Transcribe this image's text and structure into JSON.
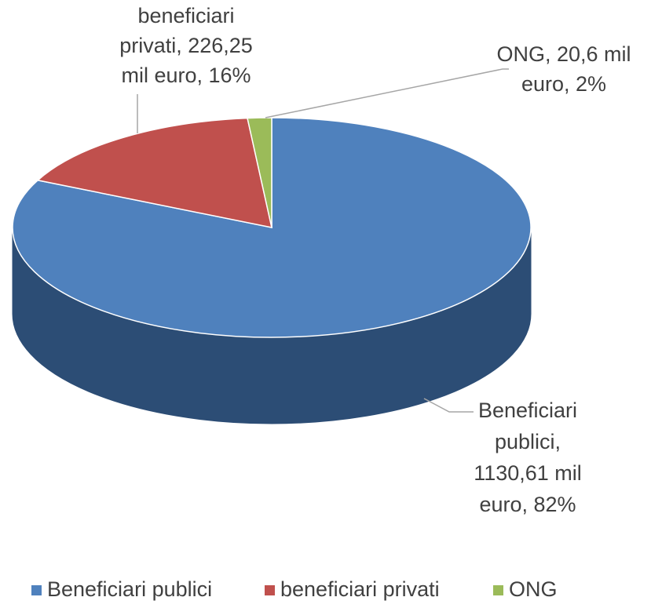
{
  "chart_data": {
    "type": "pie",
    "categories": [
      "Beneficiari publici",
      "beneficiari privati",
      "ONG"
    ],
    "values": [
      1130.61,
      226.25,
      20.6
    ],
    "value_labels": [
      [
        "Beneficiari",
        "publici,",
        "1130,61 mil",
        "euro, 82%"
      ],
      [
        "beneficiari",
        "privati, 226,25",
        "mil euro, 16%"
      ],
      [
        "ONG, 20,6 mil",
        "euro, 2%"
      ]
    ],
    "colors": [
      "#4f81bd",
      "#c0504d",
      "#9bbb59"
    ],
    "side_colors": [
      "#2c4d75",
      "#7f2f2d",
      "#67803a"
    ],
    "legend": "bottom"
  }
}
